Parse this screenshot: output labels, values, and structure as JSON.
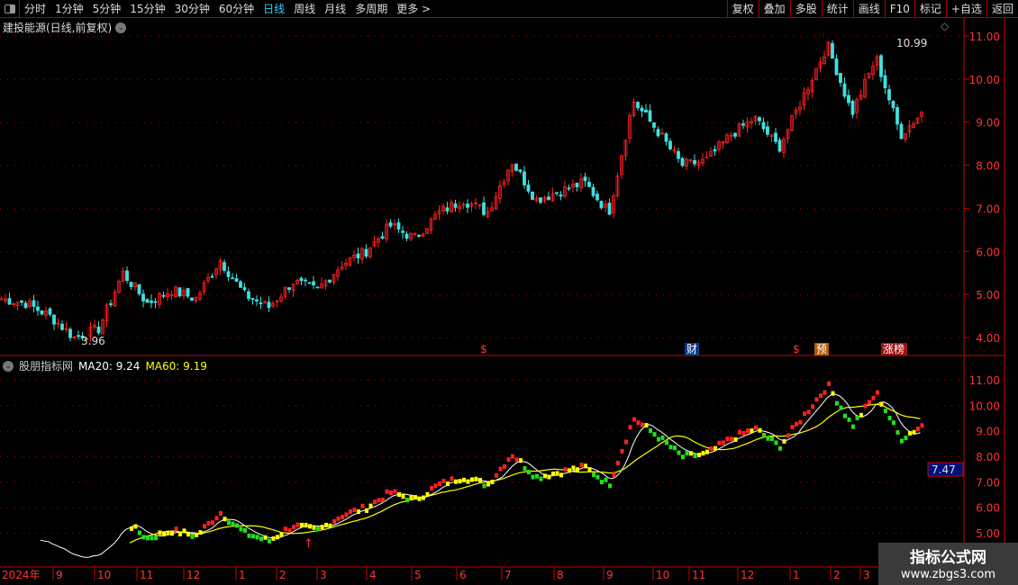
{
  "toolbar": {
    "periods": [
      "分时",
      "1分钟",
      "5分钟",
      "15分钟",
      "30分钟",
      "60分钟",
      "日线",
      "周线",
      "月线",
      "多周期",
      "更多 >"
    ],
    "active": "日线",
    "right": [
      "复权",
      "叠加",
      "多股",
      "统计",
      "画线",
      "F10",
      "标记",
      "+自选",
      "返回"
    ]
  },
  "title": "建投能源(日线,前复权)",
  "indicator": {
    "name": "股朋指标网",
    "ma20": "MA20: 9.24",
    "ma60": "MA60: 9.19"
  },
  "colors": {
    "up": "#ff2020",
    "down": "#40e0e0",
    "ma20": "#ffffff",
    "ma60": "#ffff00",
    "green": "#20e020",
    "yellow": "#ffff00",
    "axis": "#cc0000"
  },
  "price_axis": [
    "11.00",
    "10.00",
    "9.00",
    "8.00",
    "7.00",
    "6.00",
    "5.00",
    "4.00"
  ],
  "ind_axis": [
    "11.00",
    "10.00",
    "9.00",
    "8.00",
    "7.00",
    "6.00",
    "5.00"
  ],
  "cursor_value": "7.47",
  "annotations": {
    "high": "10.99",
    "low": "3.96",
    "markers": [
      "$",
      "财",
      "$",
      "预",
      "涨榜"
    ]
  },
  "time_axis": [
    "2024年",
    "9",
    "10",
    "11",
    "12",
    "1",
    "2",
    "3",
    "4",
    "5",
    "6",
    "7",
    "8",
    "9",
    "10",
    "11",
    "12",
    "1",
    "2",
    "3"
  ],
  "watermark": {
    "name": "指标公式网",
    "url": "www.zbgs3.com"
  },
  "chart_data": {
    "type": "candlestick",
    "approx_close_path": [
      4.9,
      4.8,
      4.5,
      4.0,
      4.2,
      5.5,
      4.8,
      5.1,
      4.9,
      5.8,
      5.0,
      4.7,
      5.3,
      5.1,
      5.7,
      6.0,
      6.6,
      6.3,
      6.9,
      7.2,
      6.9,
      8.1,
      7.2,
      7.4,
      7.6,
      6.9,
      9.5,
      8.8,
      8.0,
      8.1,
      8.7,
      9.1,
      8.4,
      9.6,
      10.8,
      9.2,
      10.5,
      8.7,
      9.3
    ],
    "ylim": [
      4,
      11
    ]
  }
}
